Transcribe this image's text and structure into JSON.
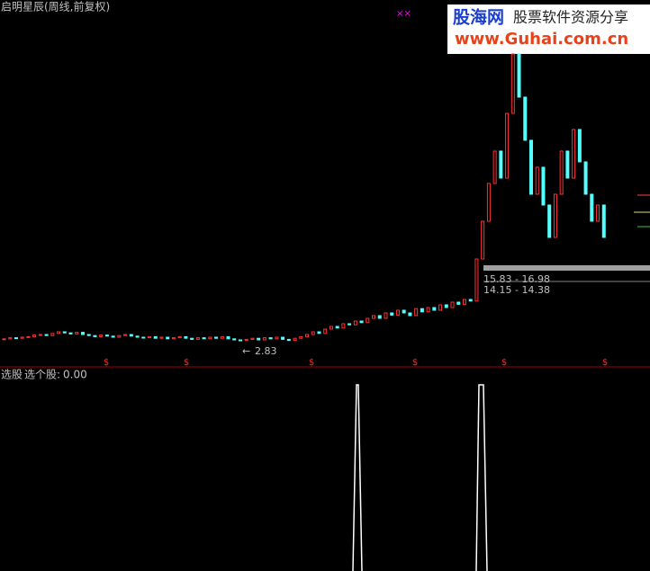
{
  "header": {
    "title": "启明星辰(周线,前复权)",
    "marker": "××"
  },
  "watermark": {
    "brand": "股海网",
    "slogan": "股票软件资源分享",
    "url": "www.Guhai.com.cn"
  },
  "price_panel": {
    "ylim": [
      -2,
      66
    ],
    "closes": [
      3.2,
      3.4,
      3.3,
      3.5,
      3.6,
      3.9,
      4.0,
      3.8,
      4.2,
      4.5,
      4.3,
      4.1,
      4.4,
      4.0,
      3.8,
      3.6,
      3.9,
      3.7,
      3.5,
      3.8,
      4.0,
      3.7,
      3.5,
      3.4,
      3.6,
      3.3,
      3.5,
      3.2,
      3.4,
      3.6,
      3.3,
      3.1,
      3.4,
      3.2,
      3.5,
      3.3,
      3.6,
      3.2,
      3.0,
      2.9,
      3.1,
      3.3,
      3.0,
      3.4,
      3.2,
      3.5,
      3.1,
      2.9,
      3.3,
      3.6,
      4.0,
      4.5,
      4.2,
      5.0,
      5.5,
      5.2,
      6.0,
      5.8,
      6.5,
      6.2,
      7.0,
      7.5,
      7.0,
      8.0,
      7.6,
      8.5,
      8.0,
      7.5,
      8.8,
      8.2,
      9.0,
      8.5,
      9.5,
      9.0,
      10.0,
      9.6,
      10.5,
      10.2,
      18,
      25,
      32,
      38,
      33,
      45,
      56,
      48,
      40,
      30,
      35,
      28,
      22,
      30,
      38,
      33,
      42,
      36,
      30,
      25,
      28,
      22
    ],
    "low_label": 2.83,
    "range_labels": [
      "15.83 - 16.98",
      "14.15 - 14.38"
    ],
    "signal_marker": "$"
  },
  "indicator_panel": {
    "name": "选股",
    "line_label": "选个股:",
    "value": "0.00"
  }
}
